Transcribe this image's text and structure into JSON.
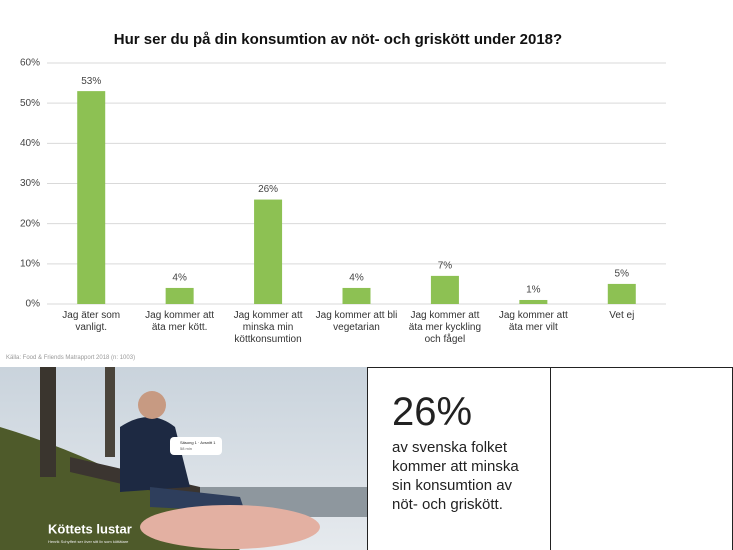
{
  "chart_data": {
    "type": "bar",
    "title": "Hur ser du på din konsumtion av nöt- och griskött under 2018?",
    "categories": [
      "Jag äter som vanligt.",
      "Jag kommer att äta mer kött.",
      "Jag kommer att minska min köttkonsumtion",
      "Jag kommer att bli vegetarian",
      "Jag kommer att äta mer kyckling och fågel",
      "Jag kommer att äta mer vilt",
      "Vet ej"
    ],
    "values": [
      53,
      4,
      26,
      4,
      7,
      1,
      5
    ],
    "value_labels": [
      "53%",
      "4%",
      "26%",
      "4%",
      "7%",
      "1%",
      "5%"
    ],
    "color": "#8dc153",
    "ylim": [
      0,
      60
    ],
    "yticks": [
      {
        "value": 0,
        "label": "0%"
      },
      {
        "value": 10,
        "label": "10%"
      },
      {
        "value": 20,
        "label": "20%"
      },
      {
        "value": 30,
        "label": "30%"
      },
      {
        "value": 40,
        "label": "40%"
      },
      {
        "value": 50,
        "label": "50%"
      },
      {
        "value": 60,
        "label": "60%"
      }
    ],
    "grid": true,
    "source": "Källa: Food & Friends Matrapport 2018 (n: 1003)"
  },
  "photo": {
    "title": "Köttets lustar",
    "subtitle": "Henrik Schyffert ser över sitt liv som köttätare",
    "badge": "Säsong 1 · Avsnitt 1",
    "duration": "58 min"
  },
  "stat": {
    "value": "26%",
    "text": "av svenska folket kommer att minska sin konsumtion av nöt- och griskött."
  }
}
